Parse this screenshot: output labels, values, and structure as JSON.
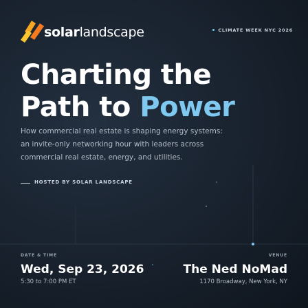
{
  "logo": {
    "bold": "solar",
    "light": "landscape"
  },
  "badge": "CLIMATE WEEK NYC 2026",
  "title": {
    "line1": "Charting the",
    "line2": "Path to",
    "highlight": "Power"
  },
  "description": [
    "How commercial real estate is shaping energy systems:",
    "an invite-only networking hour with leaders across",
    "commercial real estate, energy, and utilities."
  ],
  "host": "HOSTED BY SOLAR LANDSCAPE",
  "date": {
    "label": "DATE & TIME",
    "value": "Wed, Sep 23, 2026",
    "time": "5:30 to 7:00 PM ET"
  },
  "venue": {
    "label": "VENUE",
    "name": "The Ned NoMad",
    "address": "1170 Broadway, New York, NY"
  }
}
